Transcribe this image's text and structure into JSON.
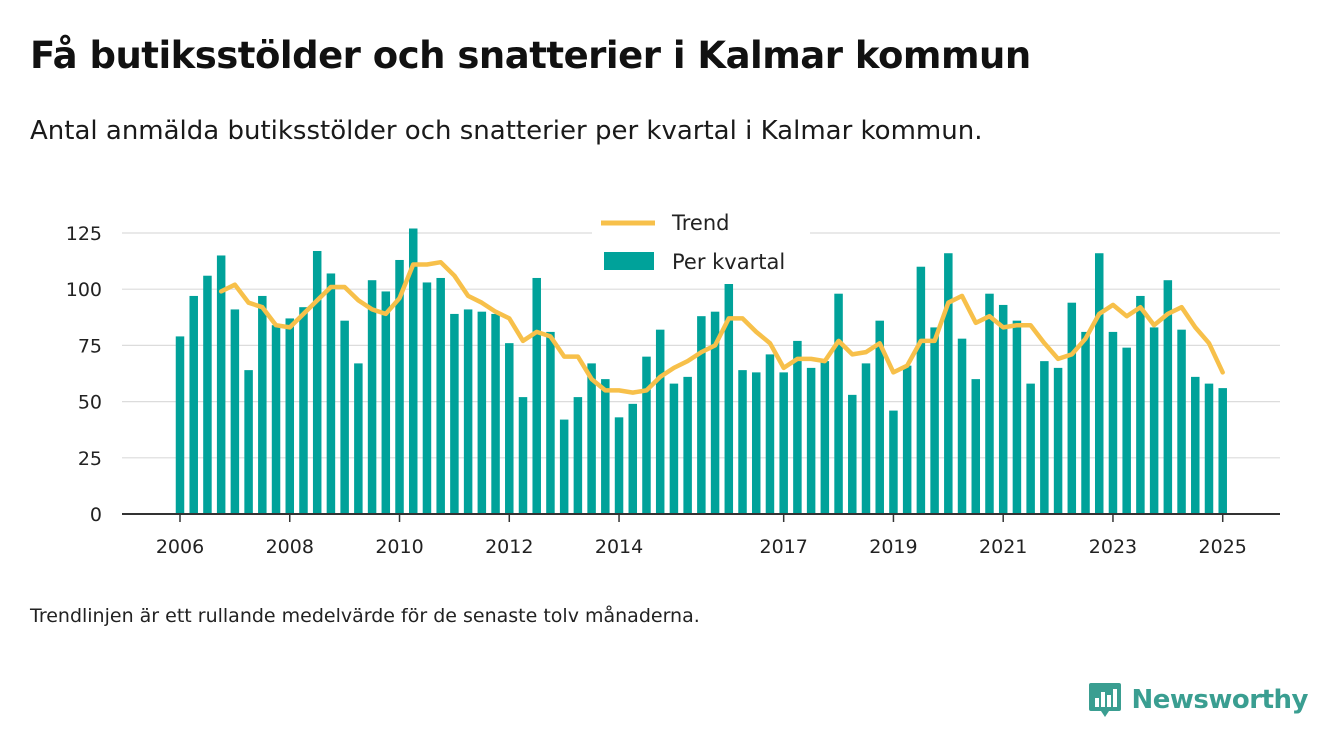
{
  "title": "Få butiksstölder och snatterier i Kalmar kommun",
  "subtitle": "Antal anmälda butiksstölder och snatterier per kvartal i Kalmar kommun.",
  "footnote": "Trendlinjen är ett rullande medelvärde för de senaste tolv månaderna.",
  "brand": {
    "name": "Newsworthy",
    "color": "#3a9e91"
  },
  "colors": {
    "bar": "#00a29a",
    "trend": "#f7c04a",
    "grid": "#dcdcdc",
    "axis": "#333333"
  },
  "chart_data": {
    "type": "bar",
    "title": "",
    "xlabel": "",
    "ylabel": "",
    "ylim": [
      0,
      130
    ],
    "yticks": [
      0,
      25,
      50,
      75,
      100,
      125
    ],
    "grid": true,
    "legend_position": "top-center",
    "x_tick_labels": [
      {
        "label": "2006",
        "index": 0
      },
      {
        "label": "2008",
        "index": 8
      },
      {
        "label": "2010",
        "index": 16
      },
      {
        "label": "2012",
        "index": 24
      },
      {
        "label": "2014",
        "index": 32
      },
      {
        "label": "2017",
        "index": 44
      },
      {
        "label": "2019",
        "index": 52
      },
      {
        "label": "2021",
        "index": 60
      },
      {
        "label": "2023",
        "index": 68
      },
      {
        "label": "2025",
        "index": 76
      }
    ],
    "series": [
      {
        "name": "Per kvartal",
        "kind": "bar",
        "values": [
          79,
          97,
          106,
          115,
          91,
          64,
          97,
          84,
          87,
          92,
          117,
          107,
          86,
          67,
          104,
          99,
          113,
          127,
          103,
          105,
          89,
          91,
          90,
          89,
          76,
          52,
          105,
          81,
          42,
          52,
          67,
          60,
          43,
          49,
          70,
          82,
          58,
          61,
          88,
          90,
          107,
          64,
          63,
          71,
          63,
          77,
          65,
          68,
          98,
          53,
          67,
          86,
          46,
          66,
          110,
          83,
          116,
          78,
          60,
          98,
          93,
          86,
          58,
          68,
          65,
          94,
          81,
          116,
          81,
          74,
          97,
          83,
          104,
          82,
          61,
          58,
          56
        ]
      },
      {
        "name": "Trend",
        "kind": "line",
        "start_index": 3,
        "values": [
          99,
          102,
          94,
          92,
          84,
          83,
          89,
          95,
          101,
          101,
          95,
          91,
          89,
          96,
          111,
          111,
          112,
          106,
          97,
          94,
          90,
          87,
          77,
          81,
          79,
          70,
          70,
          60,
          55,
          55,
          54,
          55,
          61,
          65,
          68,
          72,
          75,
          87,
          87,
          81,
          76,
          65,
          69,
          69,
          68,
          77,
          71,
          72,
          76,
          63,
          66,
          77,
          77,
          94,
          97,
          85,
          88,
          83,
          84,
          84,
          76,
          69,
          71,
          78,
          89,
          93,
          88,
          92,
          84,
          89,
          92,
          83,
          76,
          63
        ]
      }
    ]
  }
}
